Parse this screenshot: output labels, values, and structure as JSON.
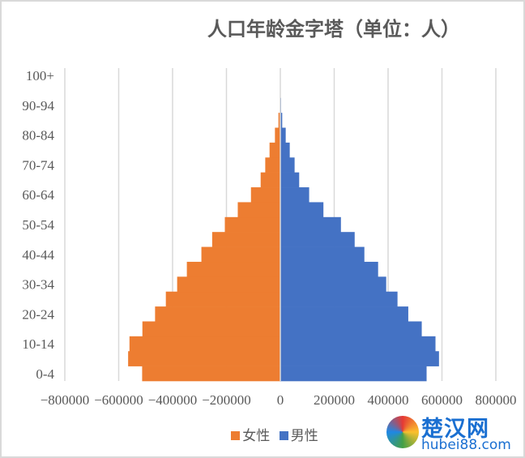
{
  "chart_data": {
    "type": "bar",
    "orientation": "horizontal",
    "title": "人口年龄金字塔（单位：人）",
    "categories": [
      "0-4",
      "5-9",
      "10-14",
      "15-19",
      "20-24",
      "25-29",
      "30-34",
      "35-39",
      "40-44",
      "45-49",
      "50-54",
      "55-59",
      "60-64",
      "65-69",
      "70-74",
      "75-79",
      "80-84",
      "85-89",
      "90-94",
      "95-99",
      "100+"
    ],
    "category_labels_shown": [
      "0-4",
      "10-14",
      "20-24",
      "30-34",
      "40-44",
      "50-54",
      "60-64",
      "70-74",
      "80-84",
      "90-94",
      "100+"
    ],
    "series": [
      {
        "name": "女性",
        "color": "#ED7D31",
        "values": [
          -513000,
          -565000,
          -560000,
          -512000,
          -465000,
          -425000,
          -383000,
          -347000,
          -293000,
          -253000,
          -206000,
          -158000,
          -109000,
          -73000,
          -56000,
          -40000,
          -20000,
          -7000,
          -1000,
          0,
          0
        ]
      },
      {
        "name": "男性",
        "color": "#4472C4",
        "values": [
          543000,
          589000,
          576000,
          525000,
          475000,
          435000,
          393000,
          363000,
          312000,
          276000,
          225000,
          160000,
          107000,
          70000,
          53000,
          35000,
          20000,
          7000,
          3000,
          0,
          0
        ]
      }
    ],
    "xlim": [
      -800000,
      800000
    ],
    "xticks": [
      -800000,
      -600000,
      -400000,
      -200000,
      0,
      200000,
      400000,
      600000,
      800000
    ],
    "xtick_labels": [
      "−800000",
      "−600000",
      "−400000",
      "−200000",
      "0",
      "200000",
      "400000",
      "600000",
      "800000"
    ],
    "grid": "vertical",
    "legend": "bottom"
  },
  "watermark": {
    "cn": "楚汉网",
    "en": "hubei88.com"
  }
}
